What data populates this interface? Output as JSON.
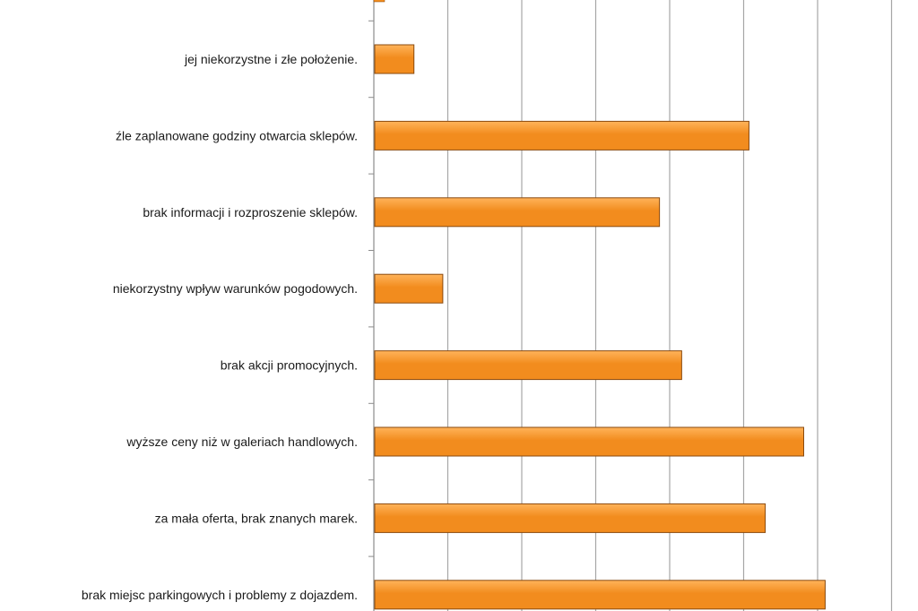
{
  "chart_data": {
    "type": "bar",
    "orientation": "horizontal",
    "categories": [
      "jej niekorzystne i złe położenie.",
      "źle zaplanowane godziny otwarcia sklepów.",
      "brak informacji i rozproszenie sklepów.",
      "niekorzystny wpływ warunków pogodowych.",
      "brak akcji promocyjnych.",
      "wyższe ceny niż w galeriach handlowych.",
      "za mała oferta, brak znanych marek.",
      "brak miejsc parkingowych i problemy z dojazdem."
    ],
    "values": [
      5.3,
      50.6,
      38.5,
      9.2,
      41.5,
      58.0,
      52.8,
      60.9
    ],
    "xlim": [
      0,
      70
    ],
    "gridlines": true,
    "legend": false,
    "colors": {
      "bar_fill": "#f28c1e",
      "bar_highlight": "#ffb35a",
      "bar_stroke": "#8a4a0e",
      "grid": "#a6a6a6",
      "axis": "#8c8c8c"
    }
  }
}
